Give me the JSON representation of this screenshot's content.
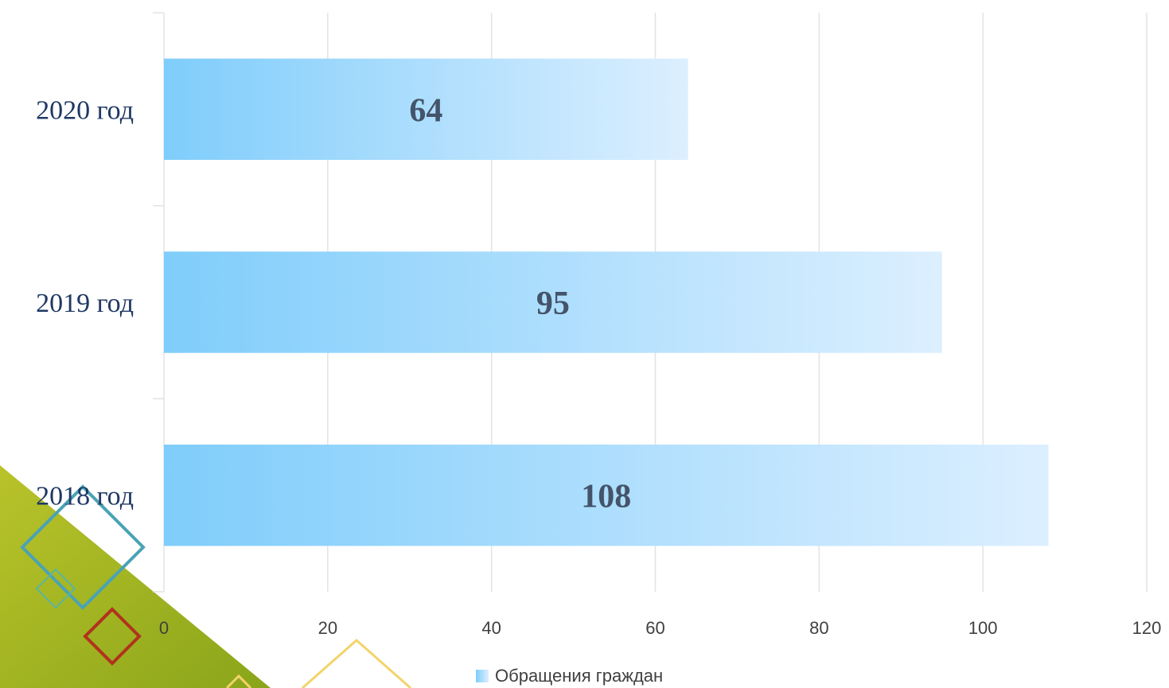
{
  "chart_data": {
    "type": "bar",
    "orientation": "horizontal",
    "categories": [
      "2020 год",
      "2019 год",
      "2018 год"
    ],
    "series": [
      {
        "name": "Обращения граждан",
        "values": [
          64,
          95,
          108
        ]
      }
    ],
    "data_labels": [
      "64",
      "95",
      "108"
    ],
    "xlim": [
      0,
      120
    ],
    "xticks": [
      "0",
      "20",
      "40",
      "60",
      "80",
      "100",
      "120"
    ],
    "grid": "vertical",
    "legend_position": "bottom",
    "colors": {
      "bar_start": "#7fcdfb",
      "bar_end": "#dcefff",
      "label": "#44546a",
      "category": "#1f3864"
    }
  },
  "legend": {
    "label": "Обращения граждан"
  }
}
